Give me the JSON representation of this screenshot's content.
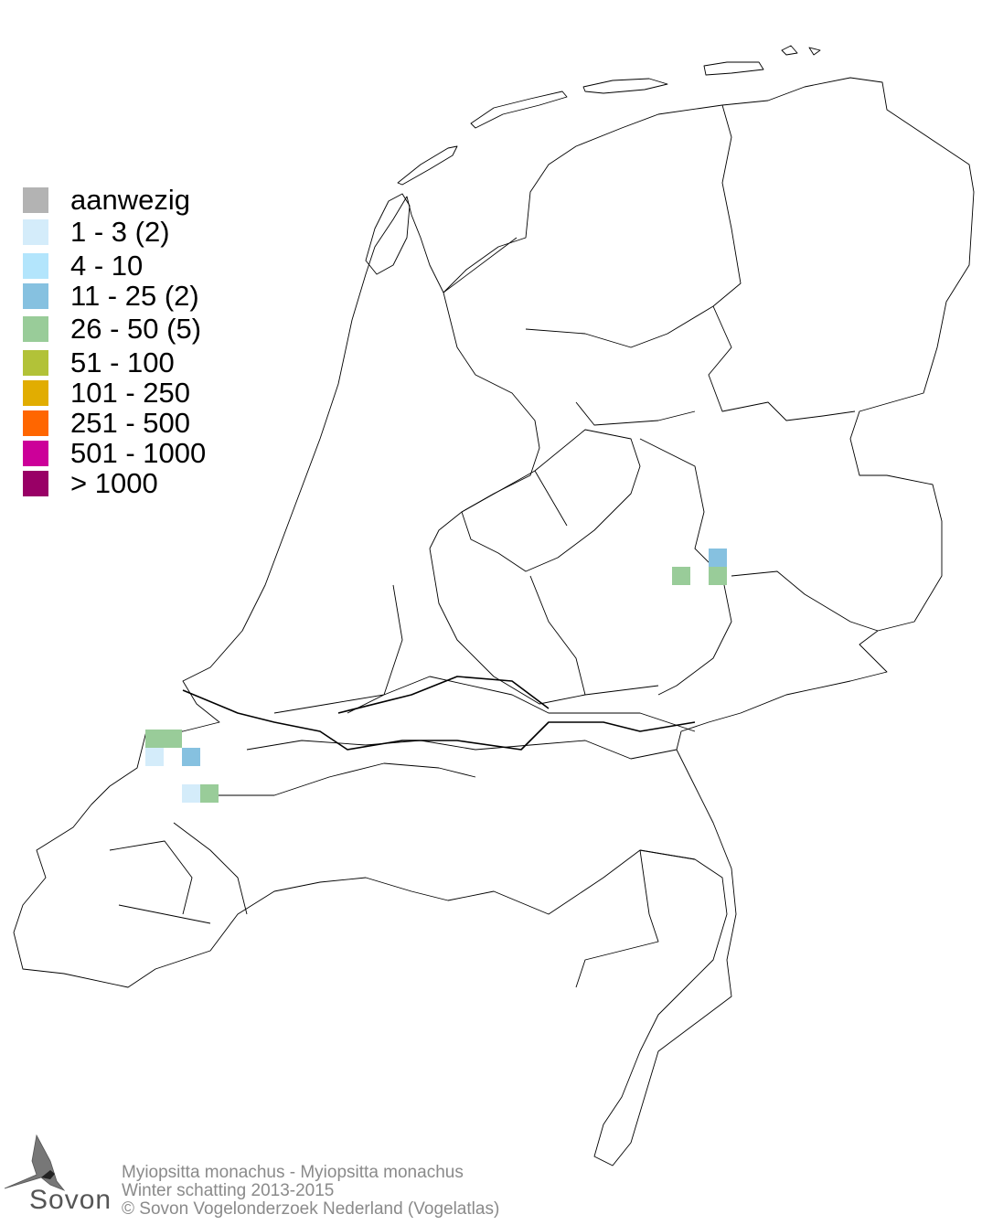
{
  "legend": {
    "items": [
      {
        "label": "aanwezig",
        "color": "#b3b3b3"
      },
      {
        "label": "1 - 3 (2)",
        "color": "#d4ecfa"
      },
      {
        "label": "4 - 10",
        "color": "#b3e5fc"
      },
      {
        "label": "11 - 25 (2)",
        "color": "#86c1e0"
      },
      {
        "label": "26 - 50 (5)",
        "color": "#99cc99"
      },
      {
        "label": "51 - 100",
        "color": "#b2c238"
      },
      {
        "label": "101 - 250",
        "color": "#e1ad01"
      },
      {
        "label": "251 - 500",
        "color": "#ff6600"
      },
      {
        "label": "501 - 1000",
        "color": "#cc0099"
      },
      {
        "label": "> 1000",
        "color": "#990066"
      }
    ]
  },
  "footer": {
    "species": "Myiopsitta monachus - Myiopsitta monachus",
    "survey": "Winter schatting 2013-2015",
    "copyright": "© Sovon Vogelonderzoek Nederland (Vogelatlas)"
  },
  "logo": {
    "text": "Sovon"
  }
}
